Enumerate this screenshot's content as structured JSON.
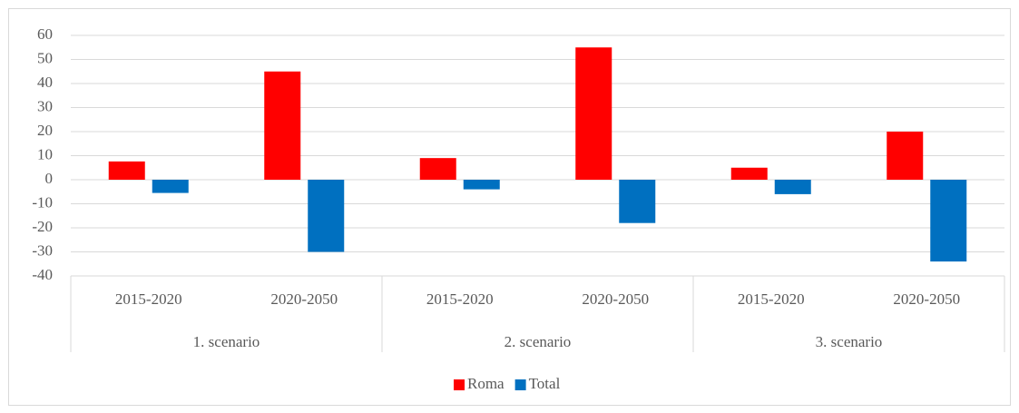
{
  "chart_data": {
    "type": "bar",
    "categories": [
      "2015-2020",
      "2020-2050",
      "2015-2020",
      "2020-2050",
      "2015-2020",
      "2020-2050"
    ],
    "groups": [
      "1. scenario",
      "2. scenario",
      "3. scenario"
    ],
    "series": [
      {
        "name": "Roma",
        "color": "#ff0000",
        "values": [
          7.6,
          45,
          9,
          55,
          5,
          20
        ]
      },
      {
        "name": "Total",
        "color": "#0070c0",
        "values": [
          -5.5,
          -30,
          -4,
          -18,
          -6,
          -34
        ]
      }
    ],
    "ylim": [
      -40,
      60
    ],
    "yticks": [
      60,
      50,
      40,
      30,
      20,
      10,
      0,
      -10,
      -20,
      -30,
      -40
    ],
    "grid": true,
    "legend": "bottom"
  }
}
